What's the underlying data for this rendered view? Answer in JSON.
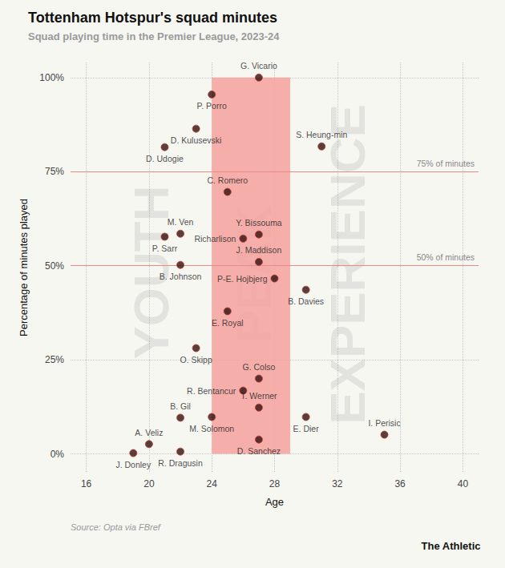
{
  "chart_data": {
    "type": "scatter",
    "title": "Tottenham Hotspur's squad minutes",
    "subtitle": "Squad playing time in the Premier League, 2023-24",
    "x_label": "Age",
    "y_label": "Percentage of minutes played",
    "source": "Source: Opta via FBref",
    "brand": "The Athletic",
    "labels": [
      "G. Vicario",
      "P. Porro",
      "D. Kulusevski",
      "D. Udogie",
      "S. Heung-min",
      "C. Romero",
      "M. Ven",
      "P. Sarr",
      "Y. Bissouma",
      "Richarlison",
      "J. Maddison",
      "B. Johnson",
      "P-E. Hojbjerg",
      "B. Davies",
      "E. Royal",
      "O. Skipp",
      "G. Colso",
      "R. Bentancur",
      "T. Werner",
      "B. Gil",
      "M. Solomon",
      "E. Dier",
      "I. Perisic",
      "A. Veliz",
      "J. Donley",
      "R. Dragusin",
      "D. Sanchez"
    ],
    "x": [
      27,
      24,
      23,
      21,
      31,
      25,
      22,
      21,
      27,
      26,
      27,
      22,
      28,
      30,
      25,
      23,
      27,
      26,
      27,
      22,
      24,
      30,
      35,
      20,
      19,
      22,
      27
    ],
    "values": [
      100,
      95.5,
      86.4,
      81.5,
      81.7,
      69.6,
      58.5,
      57.7,
      58.3,
      57.2,
      51,
      50.2,
      46.6,
      43.6,
      37.9,
      28.1,
      20,
      16.8,
      12.3,
      9.6,
      9.8,
      9.8,
      5.1,
      2.6,
      0.2,
      0.6,
      3.8
    ],
    "color": "#2e1010",
    "marker": "circle",
    "xlim": [
      15,
      41
    ],
    "xticks": [
      16,
      20,
      24,
      28,
      32,
      36,
      40
    ],
    "ylim": [
      -5,
      104
    ],
    "yticks": [
      {
        "value": 0,
        "label": "0%"
      },
      {
        "value": 25,
        "label": "25%"
      },
      {
        "value": 50,
        "label": "50%"
      },
      {
        "value": 75,
        "label": "75%"
      },
      {
        "value": 100,
        "label": "100%"
      }
    ],
    "grid": true,
    "band": {
      "x": [
        24,
        29
      ],
      "y": [
        0,
        100
      ],
      "color": "#f4a19d"
    },
    "reference_lines": [
      {
        "value": 75,
        "label": "75% of minutes"
      },
      {
        "value": 50,
        "label": "50% of minutes"
      }
    ],
    "annotations": [
      {
        "text": "YOUTH"
      },
      {
        "text": "PEAK"
      },
      {
        "text": "EXPERIENCE"
      }
    ]
  }
}
